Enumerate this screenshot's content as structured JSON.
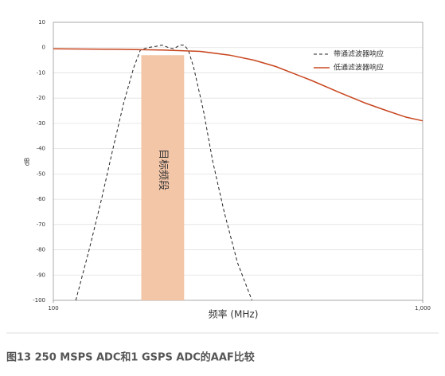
{
  "chart_data": {
    "type": "line",
    "xlabel": "频率 (MHz)",
    "ylabel": "dB",
    "xscale": "log",
    "xlim": [
      100,
      1000
    ],
    "xticks": [
      100,
      {
        "value": 1000,
        "label": "1,000"
      }
    ],
    "ylim": [
      -100,
      10
    ],
    "yticks": [
      -100,
      -90,
      -80,
      -70,
      -60,
      -50,
      -40,
      -30,
      -20,
      -10,
      0,
      10
    ],
    "grid": true,
    "legend": "upper right",
    "band": {
      "label": "目标频段",
      "color": "#f4c6a8",
      "x": [
        173,
        226
      ],
      "y": [
        -100,
        -3
      ]
    },
    "series": [
      {
        "name": "带通滤波器响应",
        "color": "#222222",
        "style": "dashed",
        "x": [
          115,
          125,
          135,
          145,
          155,
          165,
          172,
          180,
          190,
          197,
          205,
          212,
          220,
          226,
          232,
          240,
          255,
          270,
          290,
          315,
          345
        ],
        "values": [
          -100,
          -80,
          -60,
          -40,
          -22,
          -8,
          -1,
          0,
          0.5,
          1,
          0,
          -0.5,
          1,
          1,
          -1,
          -8,
          -25,
          -45,
          -65,
          -85,
          -100
        ]
      },
      {
        "name": "低通滤波器响应",
        "color": "#c8461e",
        "style": "solid",
        "x": [
          100,
          150,
          200,
          250,
          300,
          350,
          400,
          500,
          600,
          700,
          800,
          900,
          1000
        ],
        "values": [
          -0.5,
          -0.7,
          -1,
          -1.5,
          -3,
          -5,
          -7.5,
          -13,
          -18,
          -22,
          -25,
          -27.5,
          -29
        ]
      }
    ],
    "caption": "图13   250 MSPS ADC和1 GSPS ADC的AAF比较"
  }
}
